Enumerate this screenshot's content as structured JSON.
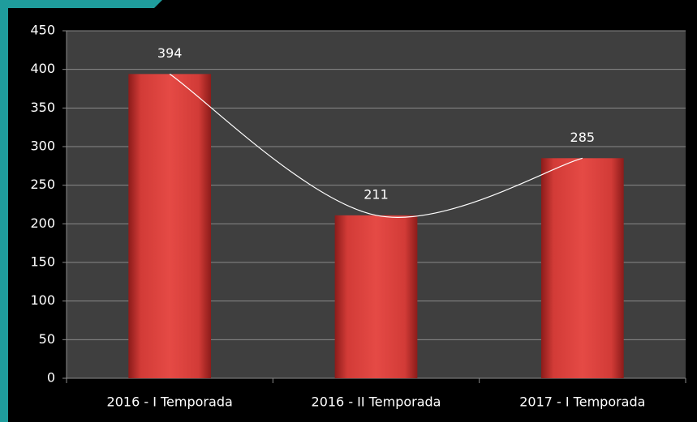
{
  "chart_data": {
    "type": "bar",
    "categories": [
      "2016 - I Temporada",
      "2016 - II Temporada",
      "2017 - I Temporada"
    ],
    "values": [
      394,
      211,
      285
    ],
    "color": "#d93a36",
    "ylim": [
      0,
      450
    ],
    "yticks": [
      0,
      50,
      100,
      150,
      200,
      250,
      300,
      350,
      400,
      450
    ],
    "grid": true,
    "smooth_line": true,
    "line_color": "#ffffff",
    "data_labels": true
  }
}
